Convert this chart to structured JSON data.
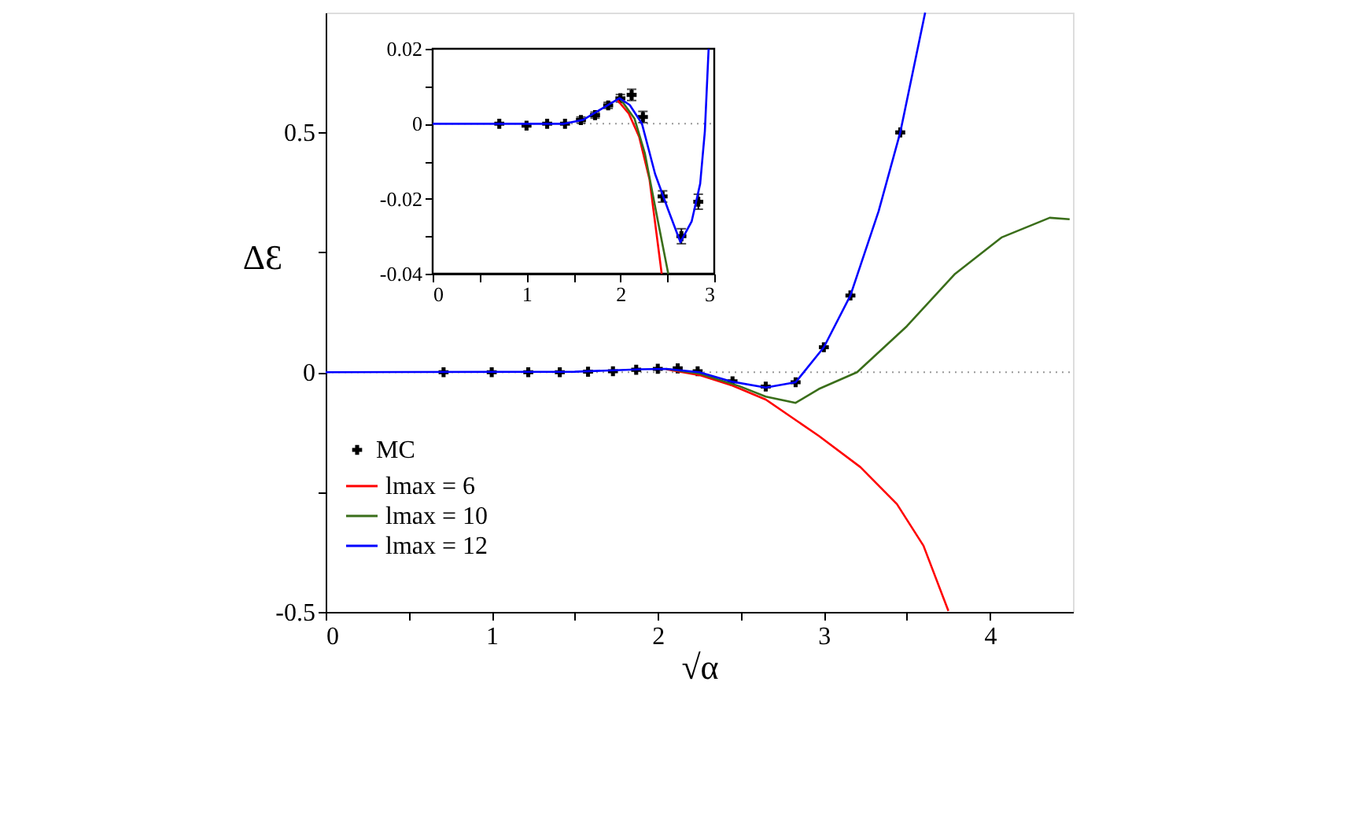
{
  "chart_data": [
    {
      "type": "line",
      "xlabel": "√α",
      "ylabel": "ΔƐ",
      "xlim": [
        0,
        4.5
      ],
      "ylim": [
        -0.5,
        0.75
      ],
      "xticks": [
        0,
        {
          "value": 0.5,
          "label": null
        },
        1,
        {
          "value": 1.5,
          "label": null
        },
        2,
        {
          "value": 2.5,
          "label": null
        },
        3,
        {
          "value": 3.5,
          "label": null
        },
        4
      ],
      "yticks": [
        -0.5,
        {
          "value": -0.25,
          "label": null
        },
        0,
        {
          "value": 0.25,
          "label": null
        },
        0.5
      ],
      "grid": false,
      "legend": "bottom left",
      "ref_lines": [
        {
          "axis": "y",
          "value": 0,
          "label": null,
          "color": "#999999",
          "line_style": "dotted"
        }
      ],
      "series": [
        {
          "name": "MC",
          "type": "scatter",
          "marker": "cross",
          "color": "#000000",
          "x": [
            0.71,
            1,
            1.22,
            1.41,
            1.58,
            1.73,
            1.87,
            2,
            2.12,
            2.24,
            2.45,
            2.65,
            2.83,
            3,
            3.16,
            3.46
          ],
          "values": [
            0,
            0,
            0,
            0,
            0.001,
            0.002,
            0.005,
            0.007,
            0.008,
            0.002,
            -0.019,
            -0.03,
            -0.021,
            0.052,
            0.16,
            0.5
          ]
        },
        {
          "name": "lmax = 6",
          "marker": "none",
          "color": "#ff0000",
          "x": [
            2.05,
            2.25,
            2.45,
            2.65,
            2.97,
            3.22,
            3.44,
            3.6,
            3.75
          ],
          "values": [
            0.006,
            -0.006,
            -0.028,
            -0.057,
            -0.133,
            -0.198,
            -0.275,
            -0.362,
            -0.498
          ]
        },
        {
          "name": "lmax = 10",
          "marker": "none",
          "color": "#3a6e1a",
          "x": [
            2.05,
            2.25,
            2.49,
            2.65,
            2.83,
            2.97,
            3.2,
            3.5,
            3.79,
            4.07,
            4.36,
            4.48
          ],
          "values": [
            0.007,
            -0.003,
            -0.029,
            -0.051,
            -0.064,
            -0.035,
            0,
            0.096,
            0.205,
            0.281,
            0.322,
            0.319
          ]
        },
        {
          "name": "lmax = 12",
          "marker": "none",
          "color": "#0000ff",
          "x": [
            0,
            1.5,
            1.9,
            2.05,
            2.25,
            2.45,
            2.65,
            2.83,
            3,
            3.16,
            3.33,
            3.46,
            3.61
          ],
          "values": [
            0,
            0.001,
            0.006,
            0.007,
            0,
            -0.02,
            -0.032,
            -0.021,
            0.052,
            0.16,
            0.336,
            0.5,
            0.75
          ]
        }
      ]
    },
    {
      "type": "line",
      "xlim": [
        0,
        3
      ],
      "ylim": [
        -0.04,
        0.02
      ],
      "xticks": [
        0,
        {
          "value": 0.5,
          "label": null
        },
        1,
        {
          "value": 1.5,
          "label": null
        },
        2,
        {
          "value": 2.5,
          "label": null
        },
        3
      ],
      "yticks": [
        -0.04,
        {
          "value": -0.03,
          "label": null
        },
        -0.02,
        {
          "value": -0.01,
          "label": null
        },
        0,
        {
          "value": 0.01,
          "label": null
        },
        0.02
      ],
      "grid": false,
      "ref_lines": [
        {
          "axis": "y",
          "value": 0,
          "label": null,
          "color": "#999999",
          "line_style": "dotted"
        }
      ],
      "series": [
        {
          "type": "scatter",
          "marker": "cross",
          "color": "#000000",
          "x": [
            0.71,
            1,
            1.22,
            1.41,
            1.58,
            1.73,
            1.87,
            2,
            2.12,
            2.24,
            2.45,
            2.65,
            2.83
          ],
          "values": [
            0,
            -0.0005,
            0,
            0,
            0.001,
            0.0023,
            0.0049,
            0.0068,
            0.0077,
            0.0018,
            -0.0194,
            -0.03,
            -0.0208
          ],
          "errors": [
            null,
            null,
            null,
            null,
            0.0008,
            0.0008,
            0.0008,
            0.001,
            0.0015,
            0.0015,
            0.0015,
            0.002,
            0.002
          ]
        },
        {
          "marker": "none",
          "color": "#ff0000",
          "x": [
            1.97,
            2.09,
            2.2,
            2.31,
            2.44
          ],
          "values": [
            0.0063,
            0.0027,
            -0.0035,
            -0.0148,
            -0.04
          ]
        },
        {
          "marker": "none",
          "color": "#3a6e1a",
          "x": [
            2,
            2.15,
            2.26,
            2.4,
            2.51
          ],
          "values": [
            0.0066,
            0.0014,
            -0.0078,
            -0.026,
            -0.04
          ]
        },
        {
          "marker": "none",
          "color": "#0000ff",
          "x": [
            0,
            1.4,
            1.6,
            1.8,
            1.99,
            2.1,
            2.23,
            2.37,
            2.51,
            2.64,
            2.76,
            2.85,
            2.9,
            2.94
          ],
          "values": [
            0,
            0,
            0.001,
            0.004,
            0.0068,
            0.005,
            0,
            -0.0134,
            -0.023,
            -0.0316,
            -0.026,
            -0.016,
            -0.002,
            0.02
          ]
        }
      ]
    }
  ]
}
